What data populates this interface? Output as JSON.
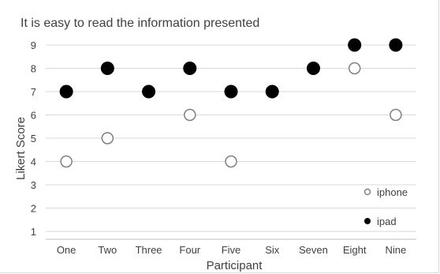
{
  "chart_data": {
    "type": "scatter",
    "title": "It is easy to read the information presented",
    "xlabel": "Participant",
    "ylabel": "Likert Score",
    "categories": [
      "One",
      "Two",
      "Three",
      "Four",
      "Five",
      "Six",
      "Seven",
      "Eight",
      "Nine"
    ],
    "y_ticks": [
      "1",
      "2",
      "3",
      "4",
      "5",
      "6",
      "7",
      "8",
      "9"
    ],
    "ylim": [
      1,
      9
    ],
    "grid": true,
    "legend_position": "bottom-right",
    "series": [
      {
        "name": "iphone",
        "marker": "open-circle",
        "color": "#7f7f7f",
        "values": [
          4,
          5,
          7,
          6,
          4,
          7,
          8,
          8,
          6
        ]
      },
      {
        "name": "ipad",
        "marker": "filled-circle",
        "color": "#000000",
        "values": [
          7,
          8,
          7,
          8,
          7,
          7,
          8,
          9,
          9
        ]
      }
    ]
  }
}
